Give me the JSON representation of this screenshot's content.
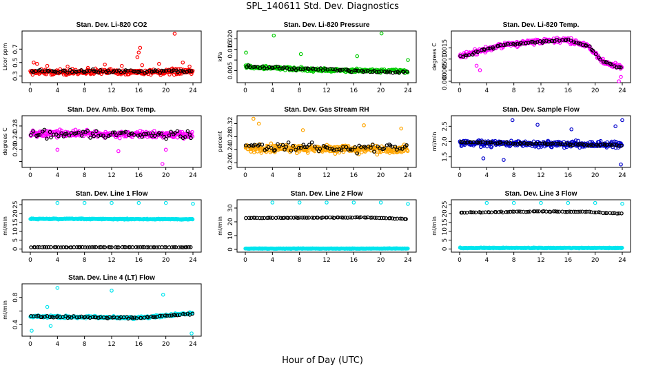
{
  "figure": {
    "title": "SPL_140611  Std. Dev. Diagnostics",
    "xlabel": "Hour of Day (UTC)"
  },
  "chart_data": [
    {
      "type": "scatter",
      "title": "Stan. Dev. Li-820 CO2",
      "ylabel": "Licor ppm",
      "xlim": [
        0,
        24
      ],
      "xticks": [
        0,
        4,
        8,
        12,
        16,
        20,
        24
      ],
      "ylim": [
        0.22,
        0.95
      ],
      "yticks": [
        0.3,
        0.5,
        0.7
      ],
      "yticklabels": [
        "0.3",
        "0.5",
        "0.7"
      ],
      "series": [
        {
          "color": "#ff0000",
          "mode": "band",
          "n": 300,
          "base": [
            [
              0,
              0.36
            ],
            [
              24,
              0.36
            ]
          ],
          "spread": 0.06,
          "outliers": [
            [
              0.5,
              0.5
            ],
            [
              1,
              0.48
            ],
            [
              2.5,
              0.45
            ],
            [
              5.5,
              0.44
            ],
            [
              8.5,
              0.42
            ],
            [
              11,
              0.47
            ],
            [
              13.5,
              0.45
            ],
            [
              15.8,
              0.58
            ],
            [
              16,
              0.65
            ],
            [
              16.2,
              0.72
            ],
            [
              16.5,
              0.46
            ],
            [
              19,
              0.48
            ],
            [
              21.3,
              0.93
            ],
            [
              22.5,
              0.5
            ],
            [
              23.5,
              0.44
            ]
          ]
        },
        {
          "color": "#000000",
          "mode": "line",
          "n": 72,
          "base": [
            [
              0,
              0.37
            ],
            [
              24,
              0.37
            ]
          ],
          "spread": 0.035
        }
      ]
    },
    {
      "type": "scatter",
      "title": "Stan. Dev. Li-820 Pressure",
      "ylabel": "kPa",
      "xlim": [
        0,
        24
      ],
      "xticks": [
        0,
        4,
        8,
        12,
        16,
        20,
        24
      ],
      "ylim": [
        0.0,
        0.023
      ],
      "yticks": [
        0.005,
        0.01,
        0.015,
        0.02
      ],
      "yticklabels": [
        "0.005",
        "",
        "0.015",
        "0.020"
      ],
      "series": [
        {
          "color": "#00cc00",
          "mode": "band",
          "n": 300,
          "base": [
            [
              0,
              0.0068
            ],
            [
              12,
              0.0052
            ],
            [
              24,
              0.0048
            ]
          ],
          "spread": 0.0012,
          "outliers": [
            [
              0.1,
              0.0135
            ],
            [
              4.2,
              0.0215
            ],
            [
              8.2,
              0.0128
            ],
            [
              20.1,
              0.0225
            ],
            [
              16.5,
              0.0118
            ],
            [
              24,
              0.01
            ]
          ]
        },
        {
          "color": "#000000",
          "mode": "line",
          "n": 72,
          "base": [
            [
              0,
              0.0068
            ],
            [
              12,
              0.0054
            ],
            [
              24,
              0.0042
            ]
          ],
          "spread": 0.001
        }
      ]
    },
    {
      "type": "scatter",
      "title": "Stan. Dev. Li-820 Temp.",
      "ylabel": "degrees C",
      "xlim": [
        0,
        24
      ],
      "xticks": [
        0,
        4,
        8,
        12,
        16,
        20,
        24
      ],
      "ylim": [
        0.0,
        0.022
      ],
      "yticks": [
        0.0,
        0.005,
        0.01,
        0.015
      ],
      "yticklabels": [
        "0.000",
        "0.005",
        "0.010",
        "0.015"
      ],
      "series": [
        {
          "color": "#ff00ff",
          "mode": "band",
          "n": 300,
          "base": [
            [
              0,
              0.011
            ],
            [
              3,
              0.0135
            ],
            [
              6,
              0.016
            ],
            [
              10,
              0.0175
            ],
            [
              16,
              0.0185
            ],
            [
              19,
              0.016
            ],
            [
              21,
              0.009
            ],
            [
              24,
              0.006
            ]
          ],
          "spread": 0.0018,
          "outliers": [
            [
              2.5,
              0.007
            ],
            [
              3,
              0.005
            ],
            [
              23.5,
              0.0
            ],
            [
              23.8,
              0.002
            ]
          ]
        },
        {
          "color": "#000000",
          "mode": "line",
          "n": 72,
          "base": [
            [
              0,
              0.011
            ],
            [
              3,
              0.0135
            ],
            [
              6,
              0.016
            ],
            [
              10,
              0.0175
            ],
            [
              16,
              0.0185
            ],
            [
              19,
              0.016
            ],
            [
              21,
              0.009
            ],
            [
              24,
              0.006
            ]
          ],
          "spread": 0.0008
        }
      ]
    },
    {
      "type": "scatter",
      "title": "Stan. Dev. Amb. Box Temp.",
      "ylabel": "degrees C",
      "xlim": [
        0,
        24
      ],
      "xticks": [
        0,
        4,
        8,
        12,
        16,
        20,
        24
      ],
      "ylim": [
        0.145,
        0.31
      ],
      "yticks": [
        0.16,
        0.2,
        0.24,
        0.28
      ],
      "yticklabels": [
        "",
        "0.20",
        "0.24",
        "0.28"
      ],
      "series": [
        {
          "color": "#ff00ff",
          "mode": "band",
          "n": 300,
          "base": [
            [
              0,
              0.255
            ],
            [
              24,
              0.25
            ]
          ],
          "spread": 0.016,
          "outliers": [
            [
              19.5,
              0.152
            ],
            [
              4,
              0.2
            ],
            [
              13,
              0.195
            ],
            [
              20,
              0.2
            ]
          ]
        },
        {
          "color": "#000000",
          "mode": "line",
          "n": 72,
          "base": [
            [
              0,
              0.255
            ],
            [
              24,
              0.25
            ]
          ],
          "spread": 0.02
        }
      ]
    },
    {
      "type": "scatter",
      "title": "Stan. Dev. Gas Stream RH",
      "ylabel": "percent",
      "xlim": [
        0,
        24
      ],
      "xticks": [
        0,
        4,
        8,
        12,
        16,
        20,
        24
      ],
      "ylim": [
        0.19,
        0.34
      ],
      "yticks": [
        0.2,
        0.24,
        0.28,
        0.32
      ],
      "yticklabels": [
        "0.20",
        "0.24",
        "0.28",
        "0.32"
      ],
      "series": [
        {
          "color": "#ffa500",
          "mode": "band",
          "n": 300,
          "base": [
            [
              0,
              0.245
            ],
            [
              24,
              0.24
            ]
          ],
          "spread": 0.018,
          "outliers": [
            [
              1.2,
              0.335
            ],
            [
              2,
              0.32
            ],
            [
              8.5,
              0.3
            ],
            [
              17.5,
              0.315
            ],
            [
              23,
              0.305
            ]
          ]
        },
        {
          "color": "#000000",
          "mode": "line",
          "n": 72,
          "base": [
            [
              0,
              0.25
            ],
            [
              24,
              0.245
            ]
          ],
          "spread": 0.02
        }
      ]
    },
    {
      "type": "scatter",
      "title": "Stan. Dev. Sample Flow",
      "ylabel": "ml/min",
      "xlim": [
        0,
        24
      ],
      "xticks": [
        0,
        4,
        8,
        12,
        16,
        20,
        24
      ],
      "ylim": [
        1.2,
        2.8
      ],
      "yticks": [
        1.5,
        2.0,
        2.5
      ],
      "yticklabels": [
        "1.5",
        "2.0",
        "2.5"
      ],
      "series": [
        {
          "color": "#0000cc",
          "mode": "band",
          "n": 300,
          "base": [
            [
              0,
              1.95
            ],
            [
              24,
              1.9
            ]
          ],
          "spread": 0.15,
          "outliers": [
            [
              23.8,
              1.25
            ],
            [
              24,
              2.7
            ],
            [
              23,
              2.5
            ],
            [
              16.5,
              2.4
            ],
            [
              7.8,
              2.7
            ],
            [
              11.5,
              2.55
            ],
            [
              3.5,
              1.45
            ],
            [
              6.5,
              1.4
            ]
          ]
        },
        {
          "color": "#000000",
          "mode": "line",
          "n": 72,
          "base": [
            [
              0,
              1.98
            ],
            [
              24,
              1.88
            ]
          ],
          "spread": 0.05
        }
      ]
    },
    {
      "type": "scatter",
      "title": "Stan. Dev. Line 1 Flow",
      "ylabel": "ml/min",
      "xlim": [
        0,
        24
      ],
      "xticks": [
        0,
        4,
        8,
        12,
        16,
        20,
        24
      ],
      "ylim": [
        -1,
        27
      ],
      "yticks": [
        0,
        5,
        10,
        15,
        20,
        25
      ],
      "yticklabels": [
        "0",
        "5",
        "10",
        "15",
        "20",
        "25"
      ],
      "series": [
        {
          "color": "#00e5ee",
          "mode": "band",
          "n": 300,
          "base": [
            [
              0,
              17
            ],
            [
              24,
              16.8
            ]
          ],
          "spread": 0.4,
          "outliers": [
            [
              4,
              26
            ],
            [
              8,
              26
            ],
            [
              12,
              26
            ],
            [
              16,
              26
            ],
            [
              20,
              26
            ],
            [
              24,
              25.5
            ]
          ]
        },
        {
          "color": "#000000",
          "mode": "line",
          "n": 72,
          "base": [
            [
              0,
              1.0
            ],
            [
              24,
              1.0
            ]
          ],
          "spread": 0.1
        }
      ]
    },
    {
      "type": "scatter",
      "title": "Stan. Dev. Line 2 Flow",
      "ylabel": "ml/min",
      "xlim": [
        0,
        24
      ],
      "xticks": [
        0,
        4,
        8,
        12,
        16,
        20,
        24
      ],
      "ylim": [
        -1,
        35
      ],
      "yticks": [
        0,
        10,
        20,
        30
      ],
      "yticklabels": [
        "0",
        "10",
        "20",
        "30"
      ],
      "series": [
        {
          "color": "#00e5ee",
          "mode": "band",
          "n": 300,
          "base": [
            [
              0,
              0.6
            ],
            [
              24,
              0.6
            ]
          ],
          "spread": 0.3,
          "outliers": [
            [
              4,
              34
            ],
            [
              8,
              34
            ],
            [
              12,
              34
            ],
            [
              16,
              34
            ],
            [
              20,
              34
            ],
            [
              24,
              33
            ]
          ]
        },
        {
          "color": "#000000",
          "mode": "line",
          "n": 72,
          "base": [
            [
              0,
              22.8
            ],
            [
              18,
              23.2
            ],
            [
              24,
              22.0
            ]
          ],
          "spread": 0.3
        }
      ]
    },
    {
      "type": "scatter",
      "title": "Stan. Dev. Line 3 Flow",
      "ylabel": "ml/min",
      "xlim": [
        0,
        24
      ],
      "xticks": [
        0,
        4,
        8,
        12,
        16,
        20,
        24
      ],
      "ylim": [
        -1,
        27
      ],
      "yticks": [
        0,
        5,
        10,
        15,
        20,
        25
      ],
      "yticklabels": [
        "0",
        "5",
        "10",
        "15",
        "20",
        "25"
      ],
      "series": [
        {
          "color": "#00e5ee",
          "mode": "band",
          "n": 300,
          "base": [
            [
              0,
              0.6
            ],
            [
              24,
              0.6
            ]
          ],
          "spread": 0.3,
          "outliers": [
            [
              4,
              26
            ],
            [
              8,
              26
            ],
            [
              12,
              26
            ],
            [
              16,
              26
            ],
            [
              20,
              26
            ],
            [
              24,
              25.5
            ]
          ]
        },
        {
          "color": "#000000",
          "mode": "line",
          "n": 72,
          "base": [
            [
              0,
              20.5
            ],
            [
              12,
              21.2
            ],
            [
              18,
              21
            ],
            [
              24,
              20
            ]
          ],
          "spread": 0.3
        }
      ]
    },
    {
      "type": "scatter",
      "title": "Stan. Dev. Line 4 (LT) Flow",
      "ylabel": "ml/min",
      "xlim": [
        0,
        24
      ],
      "xticks": [
        0,
        4,
        8,
        12,
        16,
        20,
        24
      ],
      "ylim": [
        0.25,
        0.98
      ],
      "yticks": [
        0.4,
        0.6,
        0.8
      ],
      "yticklabels": [
        "0.4",
        "",
        "0.8"
      ],
      "series": [
        {
          "color": "#00e5ee",
          "mode": "band",
          "n": 300,
          "base": [
            [
              0,
              0.52
            ],
            [
              16,
              0.5
            ],
            [
              20,
              0.53
            ],
            [
              24,
              0.57
            ]
          ],
          "spread": 0.025,
          "outliers": [
            [
              0.2,
              0.31
            ],
            [
              4,
              0.94
            ],
            [
              12,
              0.9
            ],
            [
              19.6,
              0.84
            ],
            [
              2.5,
              0.66
            ],
            [
              3,
              0.38
            ],
            [
              23.8,
              0.27
            ]
          ]
        },
        {
          "color": "#000000",
          "mode": "line",
          "n": 72,
          "base": [
            [
              0,
              0.52
            ],
            [
              16,
              0.5
            ],
            [
              20,
              0.53
            ],
            [
              24,
              0.56
            ]
          ],
          "spread": 0.02
        }
      ]
    }
  ]
}
